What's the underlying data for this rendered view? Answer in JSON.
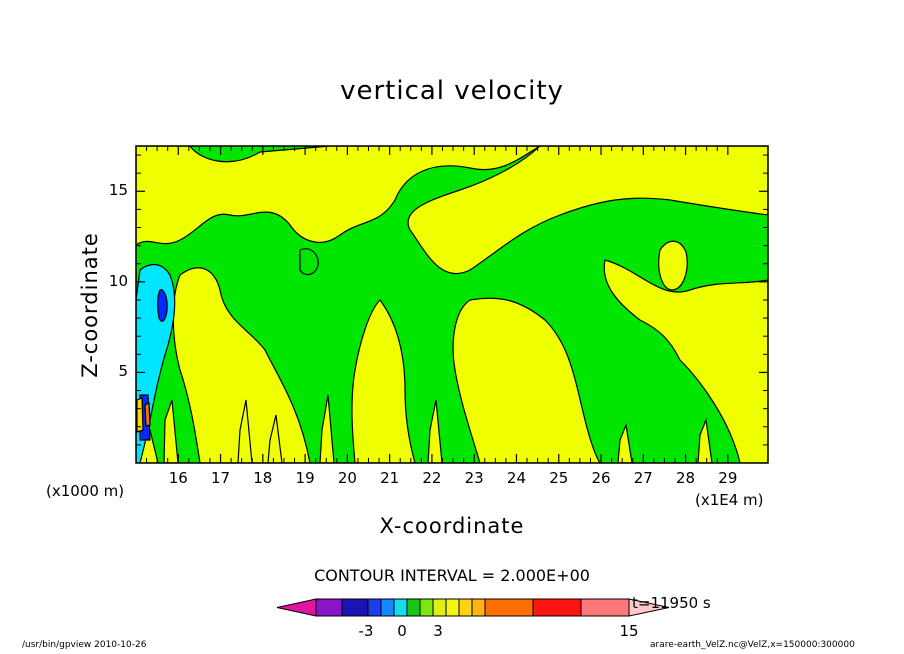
{
  "chart_data": {
    "type": "contour",
    "title": "vertical velocity",
    "xlabel": "X-coordinate",
    "ylabel": "Z-coordinate",
    "x_unit": "(x1E4 m)",
    "y_unit": "(x1000 m)",
    "xlim": [
      15.0,
      29.95
    ],
    "ylim": [
      0,
      17.5
    ],
    "x_ticks": [
      16,
      17,
      18,
      19,
      20,
      21,
      22,
      23,
      24,
      25,
      26,
      27,
      28,
      29
    ],
    "y_ticks": [
      5,
      10,
      15
    ],
    "contour_interval": "CONTOUR INTERVAL = 2.000E+00",
    "time": "t=11950 s",
    "colorbar": {
      "tick_labels": [
        "-3",
        "0",
        "3",
        "15"
      ],
      "colors": [
        "#e0149e",
        "#8b14c8",
        "#1a14b4",
        "#1e3cf0",
        "#1488ff",
        "#14dcf0",
        "#14c814",
        "#7ae614",
        "#dcf014",
        "#f5f514",
        "#ffd214",
        "#ffb414",
        "#ff6e00",
        "#ff1414",
        "#ff7878",
        "#ffc8c8"
      ]
    },
    "background_color": "#00e600",
    "positive_color": "#f0ff00",
    "weak_positive_color": "#ffd700",
    "negative_color": "#00e6ff",
    "strong_negative_color": "#0028ff"
  },
  "footer": {
    "left": "/usr/bin/gpview   2010-10-26",
    "right": "arare-earth_VelZ.nc@VelZ,x=150000:300000"
  }
}
